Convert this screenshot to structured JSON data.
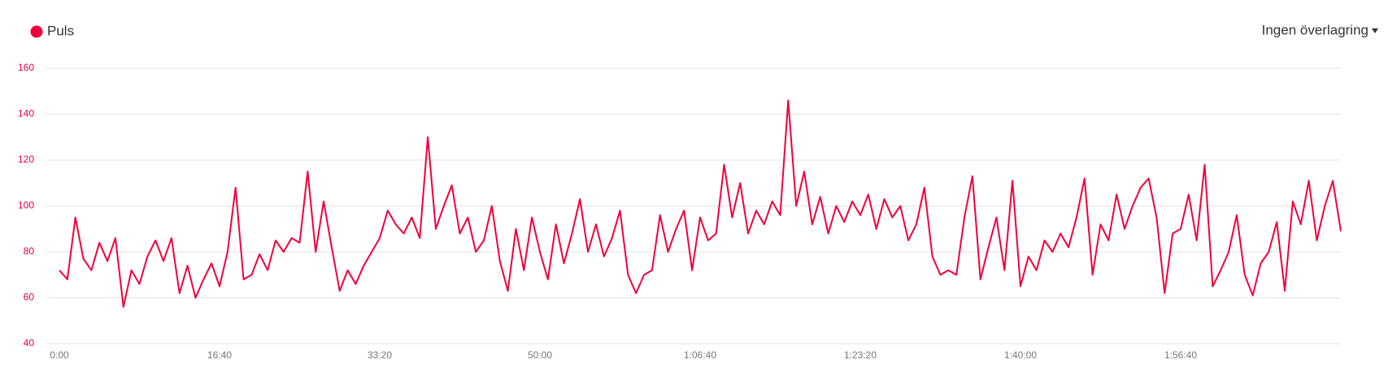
{
  "chart_data": {
    "type": "line",
    "legend_label": "Puls",
    "overlay_menu": "Ingen överlagring",
    "series": [
      {
        "name": "Puls",
        "color": "#f0003c",
        "values": [
          72,
          68,
          95,
          77,
          72,
          84,
          76,
          86,
          56,
          72,
          66,
          78,
          85,
          76,
          86,
          62,
          74,
          60,
          68,
          75,
          65,
          80,
          108,
          68,
          70,
          79,
          72,
          85,
          80,
          86,
          84,
          115,
          80,
          102,
          82,
          63,
          72,
          66,
          74,
          80,
          86,
          98,
          92,
          88,
          95,
          86,
          130,
          90,
          100,
          109,
          88,
          95,
          80,
          85,
          100,
          76,
          63,
          90,
          72,
          95,
          80,
          68,
          92,
          75,
          88,
          103,
          80,
          92,
          78,
          86,
          98,
          70,
          62,
          70,
          72,
          96,
          80,
          90,
          98,
          72,
          95,
          85,
          88,
          118,
          95,
          110,
          88,
          98,
          92,
          102,
          96,
          146,
          100,
          115,
          92,
          104,
          88,
          100,
          93,
          102,
          96,
          105,
          90,
          103,
          95,
          100,
          85,
          92,
          108,
          78,
          70,
          72,
          70,
          95,
          113,
          68,
          82,
          95,
          72,
          111,
          65,
          78,
          72,
          85,
          80,
          88,
          82,
          95,
          112,
          70,
          92,
          85,
          105,
          90,
          100,
          108,
          112,
          95,
          62,
          88,
          90,
          105,
          85,
          118,
          65,
          72,
          80,
          96,
          70,
          61,
          75,
          80,
          93,
          63,
          102,
          92,
          111,
          85,
          100,
          111,
          89
        ]
      }
    ],
    "x": [
      0,
      50,
      100,
      150,
      200,
      250,
      300,
      350,
      400,
      450,
      500,
      550,
      600,
      650,
      700,
      750,
      800,
      850,
      900,
      950,
      1000,
      1050,
      1100,
      1150,
      1200,
      1250,
      1300,
      1350,
      1400,
      1450,
      1500,
      1550,
      1600,
      1650,
      1700,
      1750,
      1800,
      1850,
      1900,
      1950,
      2000,
      2050,
      2100,
      2150,
      2200,
      2250,
      2300,
      2350,
      2400,
      2450,
      2500,
      2550,
      2600,
      2650,
      2700,
      2750,
      2800,
      2850,
      2900,
      2950,
      3000,
      3050,
      3100,
      3150,
      3200,
      3250,
      3300,
      3350,
      3400,
      3450,
      3500,
      3550,
      3600,
      3650,
      3700,
      3750,
      3800,
      3850,
      3900,
      3950,
      4000,
      4050,
      4100,
      4150,
      4200,
      4250,
      4300,
      4350,
      4400,
      4450,
      4500,
      4550,
      4600,
      4650,
      4700,
      4750,
      4800,
      4850,
      4900,
      4950,
      5000,
      5050,
      5100,
      5150,
      5200,
      5250,
      5300,
      5350,
      5400,
      5450,
      5500,
      5550,
      5600,
      5650,
      5700,
      5750,
      5800,
      5850,
      5900,
      5950,
      6000,
      6050,
      6100,
      6150,
      6200,
      6250,
      6300,
      6350,
      6400,
      6450,
      6500,
      6550,
      6600,
      6650,
      6700,
      6750,
      6800,
      6850,
      6900,
      6950,
      7000,
      7050,
      7100,
      7150,
      7200,
      7250,
      7300,
      7350,
      7400,
      7450,
      7500,
      7550,
      7600,
      7650,
      7700,
      7750,
      7800,
      7850,
      7900,
      7950,
      8000
    ],
    "xlim": [
      0,
      8000
    ],
    "xticks": [
      {
        "value": 0,
        "label": "0:00"
      },
      {
        "value": 1000,
        "label": "16:40"
      },
      {
        "value": 2000,
        "label": "33:20"
      },
      {
        "value": 3000,
        "label": "50:00"
      },
      {
        "value": 4000,
        "label": "1:06:40"
      },
      {
        "value": 5000,
        "label": "1:23:20"
      },
      {
        "value": 6000,
        "label": "1:40:00"
      },
      {
        "value": 7000,
        "label": "1:56:40"
      }
    ],
    "ylim": [
      40,
      160
    ],
    "yticks": [
      40,
      60,
      80,
      100,
      120,
      140,
      160
    ],
    "grid": true
  }
}
